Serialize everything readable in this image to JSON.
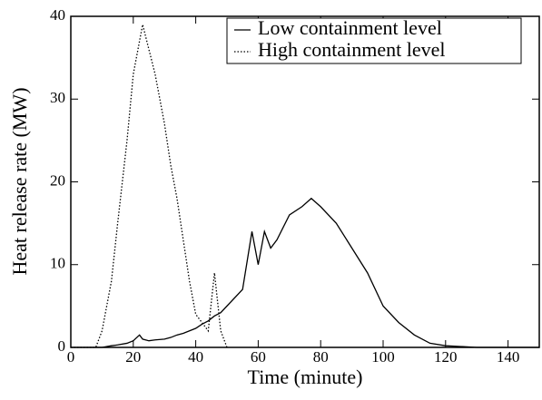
{
  "chart_data": {
    "type": "line",
    "x_label": "Time (minute)",
    "y_label": "Heat release rate (MW)",
    "x": [
      0,
      5,
      8,
      10,
      13,
      15,
      18,
      20,
      22,
      23,
      25,
      27,
      30,
      32,
      34,
      36,
      38,
      40,
      42,
      44,
      46,
      48,
      50,
      55,
      58,
      60,
      62,
      64,
      66,
      70,
      74,
      77,
      80,
      85,
      90,
      95,
      100,
      105,
      110,
      115,
      120,
      130,
      140,
      150
    ],
    "series": [
      {
        "name": "Low containment level",
        "color": "#000000",
        "dash": "none",
        "values": [
          0,
          0,
          0,
          0,
          0.2,
          0.3,
          0.5,
          0.8,
          1.5,
          1,
          0.8,
          0.9,
          1,
          1.2,
          1.5,
          1.7,
          2,
          2.3,
          2.8,
          3.2,
          3.8,
          4.2,
          5,
          7,
          14,
          10,
          14,
          12,
          13,
          16,
          17,
          18,
          17,
          15,
          12,
          9,
          5,
          3,
          1.5,
          0.5,
          0.2,
          0,
          0,
          0
        ]
      },
      {
        "name": "High containment level",
        "color": "#000000",
        "dash": "1.5,2",
        "values": [
          0,
          0,
          0,
          2,
          8,
          15,
          25,
          33,
          37,
          39,
          36,
          33,
          27,
          22,
          18,
          13,
          8,
          4,
          3,
          2,
          9,
          2,
          0,
          null,
          null,
          null,
          null,
          null,
          null,
          null,
          null,
          null,
          null,
          null,
          null,
          null,
          null,
          null,
          null,
          null,
          null,
          null,
          null,
          null
        ]
      }
    ],
    "xlim": [
      0,
      150
    ],
    "ylim": [
      0,
      40
    ],
    "xticks": [
      0,
      20,
      40,
      60,
      80,
      100,
      120,
      140
    ],
    "yticks": [
      0,
      10,
      20,
      30,
      40
    ],
    "legend": "upper-right"
  }
}
